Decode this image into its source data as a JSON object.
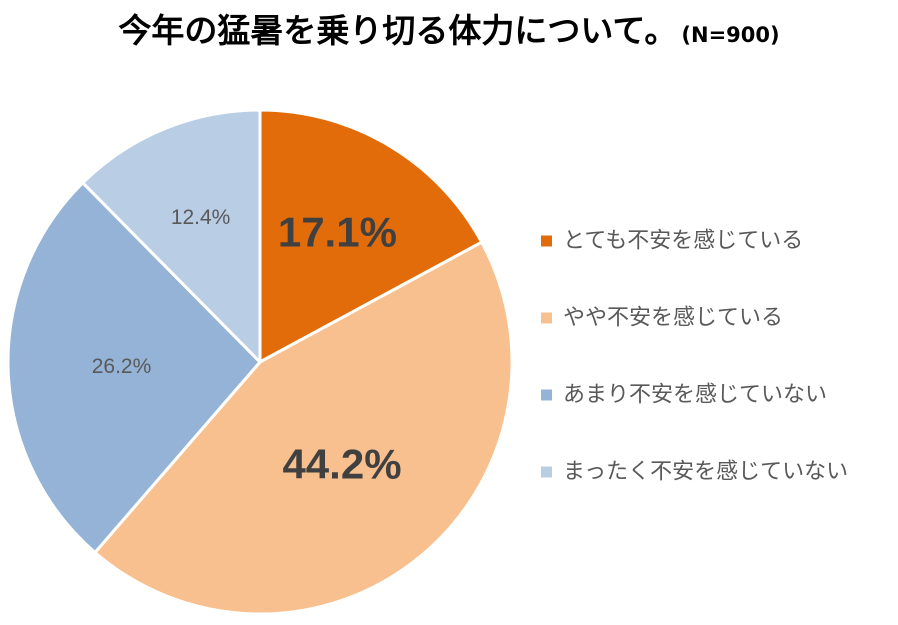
{
  "title": "今年の猛暑を乗り切る体力について。",
  "subtitle": "(N=900)",
  "chart_data": {
    "type": "pie",
    "title": "今年の猛暑を乗り切る体力について。",
    "subtitle": "(N=900)",
    "start": "12 o'clock, clockwise",
    "legend_position": "right",
    "slices": [
      {
        "label": "とても不安を感じている",
        "value": 17.1,
        "display": "17.1%",
        "color": "#E36C0A",
        "label_emphasis": "large"
      },
      {
        "label": "やや不安を感じている",
        "value": 44.2,
        "display": "44.2%",
        "color": "#F9C08F",
        "label_emphasis": "large"
      },
      {
        "label": "あまり不安を感じていない",
        "value": 26.2,
        "display": "26.2%",
        "color": "#95B3D7",
        "label_emphasis": "normal"
      },
      {
        "label": "まったく不安を感じていない",
        "value": 12.4,
        "display": "12.4%",
        "color": "#B9CDE5",
        "label_emphasis": "normal"
      }
    ]
  }
}
